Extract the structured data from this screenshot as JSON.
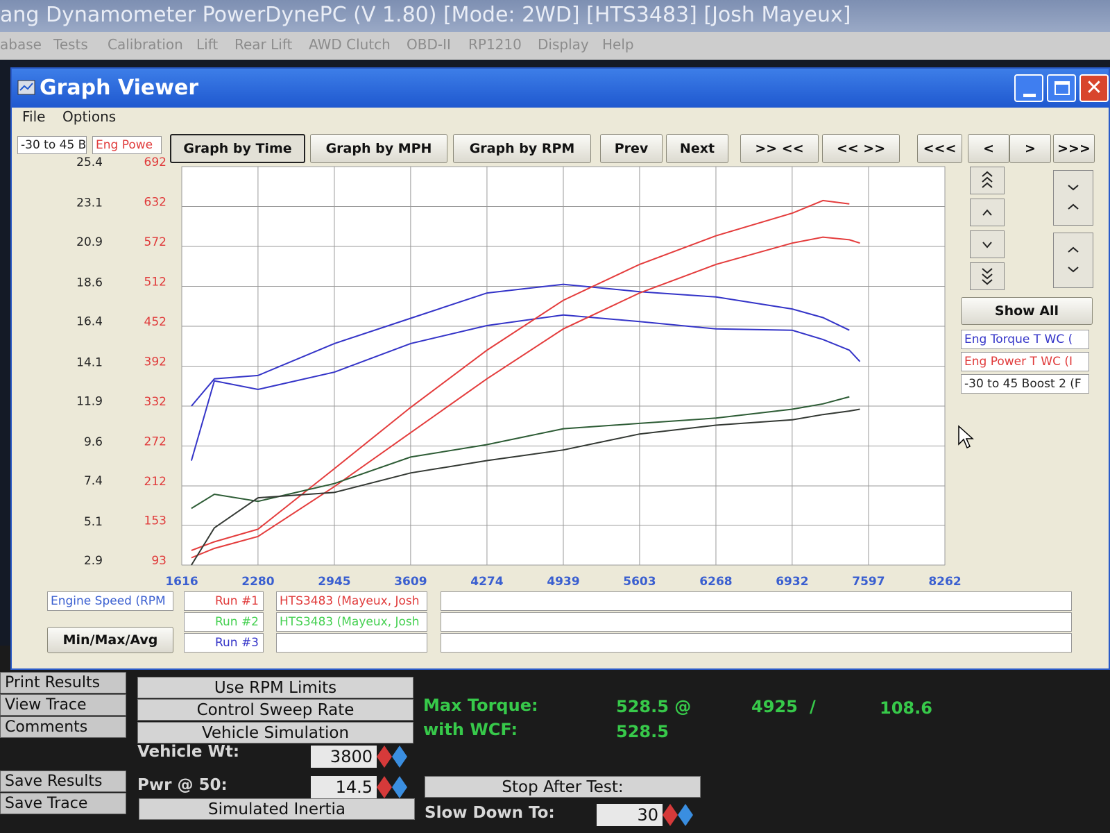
{
  "app": {
    "title": "ang Dynamometer PowerDynePC (V 1.80) [Mode: 2WD] [HTS3483] [Josh Mayeux]",
    "menu": [
      "abase",
      "Tests",
      "Calibration",
      "Lift",
      "Rear Lift",
      "AWD Clutch",
      "OBD-II",
      "RP1210",
      "Display",
      "Help"
    ]
  },
  "window": {
    "title": "Graph Viewer",
    "menu": [
      "File",
      "Options"
    ],
    "axis_headers": [
      "-30 to 45 B",
      "Eng Powe"
    ],
    "toolbar": [
      "Graph by Time",
      "Graph by MPH",
      "Graph by RPM",
      "Prev",
      "Next",
      ">> <<",
      "<< >>",
      "<<<",
      "<",
      ">",
      ">>>"
    ],
    "show_all": "Show All",
    "legend": [
      "Eng Torque T WC (",
      "Eng Power T WC (I",
      "-30 to 45 Boost 2 (F"
    ],
    "runs": [
      "Run #1",
      "Run #2",
      "Run #3"
    ],
    "run_names": [
      "HTS3483 (Mayeux, Josh",
      "HTS3483 (Mayeux, Josh"
    ],
    "min_max": "Min/Max/Avg"
  },
  "chart_data": {
    "type": "line",
    "x_label": "Engine Speed (RPM",
    "x": [
      1700,
      1900,
      2280,
      2945,
      3609,
      4274,
      4939,
      5603,
      6268,
      6932,
      7200,
      7430,
      7522
    ],
    "xlim": [
      1616,
      8262
    ],
    "xticks": [
      1616,
      2280,
      2945,
      3609,
      4274,
      4939,
      5603,
      6268,
      6932,
      7597,
      8262
    ],
    "ylim": [
      93,
      692
    ],
    "yticks": [
      93,
      153,
      212,
      272,
      332,
      392,
      452,
      512,
      572,
      632,
      692
    ],
    "y2lim": [
      2.9,
      25.4
    ],
    "y2ticks": [
      2.9,
      5.1,
      7.4,
      9.6,
      11.9,
      14.1,
      16.4,
      18.6,
      20.9,
      23.1,
      25.4
    ],
    "grid": true,
    "series": [
      {
        "color": "#3434c8",
        "values": [
          332,
          373,
          378,
          426,
          464,
          502,
          515,
          504,
          496,
          478,
          465,
          446,
          null
        ]
      },
      {
        "color": "#3434c8",
        "values": [
          250,
          370,
          357,
          383,
          426,
          453,
          469,
          459,
          448,
          446,
          432,
          416,
          399
        ]
      },
      {
        "color": "#e43c3c",
        "values": [
          115,
          128,
          147,
          238,
          330,
          416,
          491,
          545,
          588,
          622,
          641,
          636,
          null
        ]
      },
      {
        "color": "#e43c3c",
        "values": [
          104,
          118,
          136,
          211,
          292,
          373,
          448,
          502,
          545,
          577,
          586,
          582,
          577
        ]
      },
      {
        "color": "#2d5c35",
        "axis": "y2",
        "values": [
          6.1,
          6.9,
          6.5,
          7.5,
          9.0,
          9.7,
          10.6,
          10.9,
          11.2,
          11.7,
          12.0,
          12.4,
          null
        ]
      },
      {
        "color": "#333833",
        "axis": "y2",
        "values": [
          2.9,
          5.0,
          6.7,
          7.0,
          8.1,
          8.8,
          9.4,
          10.3,
          10.8,
          11.1,
          11.4,
          11.6,
          11.7
        ]
      }
    ]
  },
  "panel": {
    "buttons": [
      "Print Results",
      "View Trace",
      "Comments",
      "Save Results",
      "Save Trace"
    ],
    "options": [
      "Use RPM Limits",
      "Control Sweep Rate",
      "Vehicle Simulation",
      "Simulated Inertia",
      "Stop After Test:"
    ],
    "fields": [
      {
        "label": "Vehicle Wt:",
        "value": "3800"
      },
      {
        "label": "Pwr @ 50:",
        "value": "14.5"
      },
      {
        "label": "Slow Down To:",
        "value": "30"
      }
    ],
    "max_torque": {
      "label": "Max Torque:",
      "value": "528.5 @",
      "rpm": "4925",
      "sep": "/",
      "speed": "108.6",
      "wcf_label": "with WCF:",
      "wcf_value": "528.5"
    }
  }
}
